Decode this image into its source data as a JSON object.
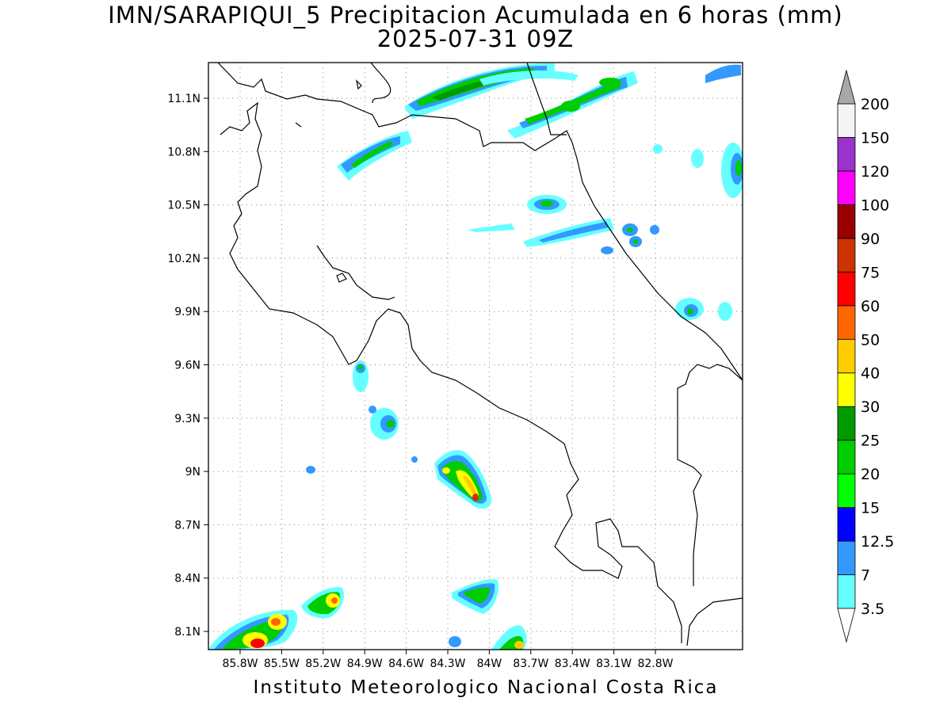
{
  "header": {
    "title": "IMN/SARAPIQUI_5 Precipitacion Acumulada en 6 horas (mm)",
    "subtitle": "2025-07-31 09Z"
  },
  "footer": "Instituto Meteorologico Nacional Costa Rica",
  "map": {
    "lon_range": [
      -86.0,
      -83.0
    ],
    "lat_range": [
      8.0,
      11.3
    ],
    "lat_ticks": [
      "11.1N",
      "10.8N",
      "10.5N",
      "10.2N",
      "9.9N",
      "9.6N",
      "9.3N",
      "9N",
      "8.7N",
      "8.4N",
      "8.1N"
    ],
    "lon_ticks": [
      "85.8W",
      "85.5W",
      "85.2W",
      "84.9W",
      "84.6W",
      "84.3W",
      "84W",
      "83.7W",
      "83.4W",
      "83.1W",
      "82.8W"
    ],
    "grid": true
  },
  "colorbar": {
    "labels": [
      "3.5",
      "7",
      "12.5",
      "15",
      "20",
      "25",
      "30",
      "40",
      "50",
      "60",
      "75",
      "90",
      "100",
      "120",
      "150",
      "200"
    ],
    "colors": [
      "#66ffff",
      "#3399ff",
      "#0000ff",
      "#00ff00",
      "#00cc00",
      "#009900",
      "#ffff00",
      "#ffcc00",
      "#ff6600",
      "#ff0000",
      "#cc3300",
      "#990000",
      "#ff00ff",
      "#9933cc",
      "#f5f5f5"
    ]
  }
}
